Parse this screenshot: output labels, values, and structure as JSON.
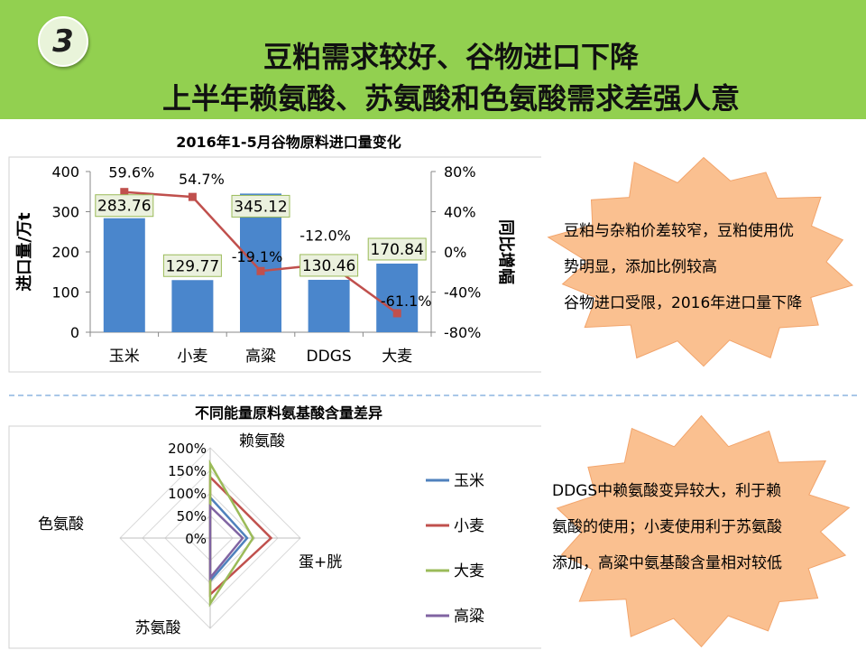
{
  "badge": "3",
  "title_line1": "豆粕需求较好、谷物进口下降",
  "title_line2": "上半年赖氨酸、苏氨酸和色氨酸需求差强人意",
  "chart_data": [
    {
      "type": "bar",
      "title": "2016年1-5月谷物原料进口量变化",
      "categories": [
        "玉米",
        "小麦",
        "高粱",
        "DDGS",
        "大麦"
      ],
      "ylabel": "进口量/万t",
      "y2label": "同比增幅",
      "ylim": [
        0,
        400
      ],
      "y2lim": [
        -80,
        80
      ],
      "yticks": [
        "400",
        "300",
        "200",
        "100",
        "0"
      ],
      "y2ticks": [
        "80%",
        "40%",
        "0%",
        "-40%",
        "-80%"
      ],
      "bar_values": [
        283.76,
        129.77,
        345.12,
        130.46,
        170.84
      ],
      "bar_labels": [
        "283.76",
        "129.77",
        "345.12",
        "130.46",
        "170.84"
      ],
      "line_values": [
        59.6,
        54.7,
        -19.1,
        -12.0,
        -61.1
      ],
      "line_labels": [
        "59.6%",
        "54.7%",
        "-19.1%",
        "-12.0%",
        "-61.1%"
      ],
      "bar_color": "#4a86cc",
      "line_color": "#c0504d"
    },
    {
      "type": "radar",
      "title": "不同能量原料氨基酸含量差异",
      "axes": [
        "赖氨酸",
        "蛋+胱",
        "苏氨酸",
        "色氨酸"
      ],
      "rticks": [
        "200%",
        "150%",
        "100%",
        "50%",
        "0%"
      ],
      "rmax": 200,
      "series": [
        {
          "name": "玉米",
          "color": "#4f81bd",
          "values": [
            90,
            82,
            95,
            0
          ]
        },
        {
          "name": "小麦",
          "color": "#c0504d",
          "values": [
            135,
            135,
            125,
            0
          ]
        },
        {
          "name": "大麦",
          "color": "#9bbb59",
          "values": [
            165,
            95,
            145,
            0
          ]
        },
        {
          "name": "高粱",
          "color": "#8064a2",
          "values": [
            70,
            72,
            88,
            0
          ]
        }
      ]
    }
  ],
  "notes": {
    "top": [
      "豆粕与杂粕价差较窄，豆粕使用优",
      "势明显，添加比例较高",
      "谷物进口受限，2016年进口量下降"
    ],
    "bottom": [
      "DDGS中赖氨酸变异较大，利于赖",
      "氨酸的使用；小麦使用利于苏氨酸",
      "添加，高粱中氨基酸含量相对较低"
    ]
  },
  "colors": {
    "header": "#92d050",
    "burst": "#fac090"
  }
}
